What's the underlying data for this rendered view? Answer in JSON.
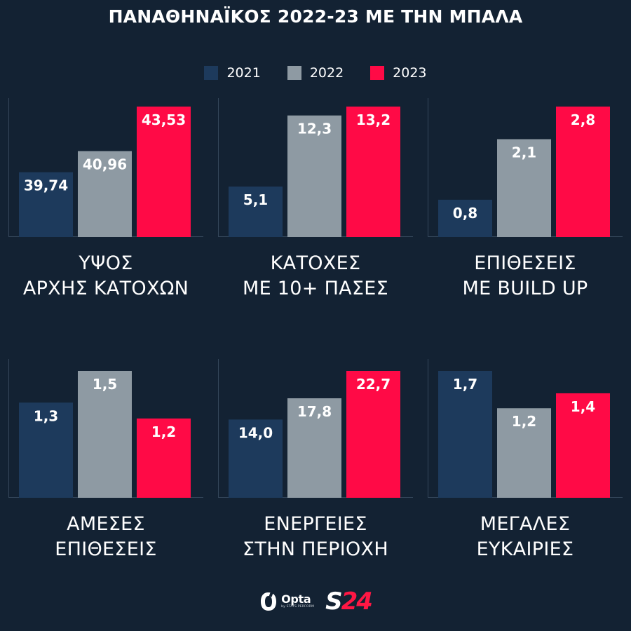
{
  "title": "ΠΑΝΑΘΗΝΑΪΚΟΣ 2022-23 ΜΕ ΤΗΝ ΜΠΑΛΑ",
  "legend": [
    {
      "label": "2021",
      "color": "#1d3a5c"
    },
    {
      "label": "2022",
      "color": "#8e9aa3"
    },
    {
      "label": "2023",
      "color": "#ff0a46"
    }
  ],
  "chart_data": [
    {
      "type": "bar",
      "title_lines": [
        "ΥΨΟΣ",
        "ΑΡΧΗΣ ΚΑΤΟΧΩΝ"
      ],
      "categories": [
        "2021",
        "2022",
        "2023"
      ],
      "values": [
        39.74,
        40.96,
        43.53
      ],
      "labels": [
        "39,74",
        "40,96",
        "43,53"
      ],
      "ylim": [
        36,
        43.53
      ]
    },
    {
      "type": "bar",
      "title_lines": [
        "ΚΑΤΟΧΕΣ",
        "ΜΕ 10+ ΠΑΣΕΣ"
      ],
      "categories": [
        "2021",
        "2022",
        "2023"
      ],
      "values": [
        5.1,
        12.3,
        13.2
      ],
      "labels": [
        "5,1",
        "12,3",
        "13,2"
      ],
      "ylim": [
        0,
        13.2
      ]
    },
    {
      "type": "bar",
      "title_lines": [
        "ΕΠΙΘΕΣΕΙΣ",
        "ΜΕ BUILD UP"
      ],
      "categories": [
        "2021",
        "2022",
        "2023"
      ],
      "values": [
        0.8,
        2.1,
        2.8
      ],
      "labels": [
        "0,8",
        "2,1",
        "2,8"
      ],
      "ylim": [
        0,
        2.8
      ]
    },
    {
      "type": "bar",
      "title_lines": [
        "ΑΜΕΣΕΣ",
        "ΕΠΙΘΕΣΕΙΣ"
      ],
      "categories": [
        "2021",
        "2022",
        "2023"
      ],
      "values": [
        1.3,
        1.5,
        1.2
      ],
      "labels": [
        "1,3",
        "1,5",
        "1,2"
      ],
      "ylim": [
        0.7,
        1.5
      ]
    },
    {
      "type": "bar",
      "title_lines": [
        "ΕΝΕΡΓΕΙΕΣ",
        "ΣΤΗΝ ΠΕΡΙΟΧΗ"
      ],
      "categories": [
        "2021",
        "2022",
        "2023"
      ],
      "values": [
        14.0,
        17.8,
        22.7
      ],
      "labels": [
        "14,0",
        "17,8",
        "22,7"
      ],
      "ylim": [
        0,
        22.7
      ]
    },
    {
      "type": "bar",
      "title_lines": [
        "ΜΕΓΑΛΕΣ",
        "ΕΥΚΑΙΡΙΕΣ"
      ],
      "categories": [
        "2021",
        "2022",
        "2023"
      ],
      "values": [
        1.7,
        1.2,
        1.4
      ],
      "labels": [
        "1,7",
        "1,2",
        "1,4"
      ],
      "ylim": [
        0,
        1.7
      ]
    }
  ],
  "footer": {
    "opta_name": "Opta",
    "opta_sub": "by STATS PERFORM",
    "s24_letter": "S",
    "s24_number": "24"
  }
}
